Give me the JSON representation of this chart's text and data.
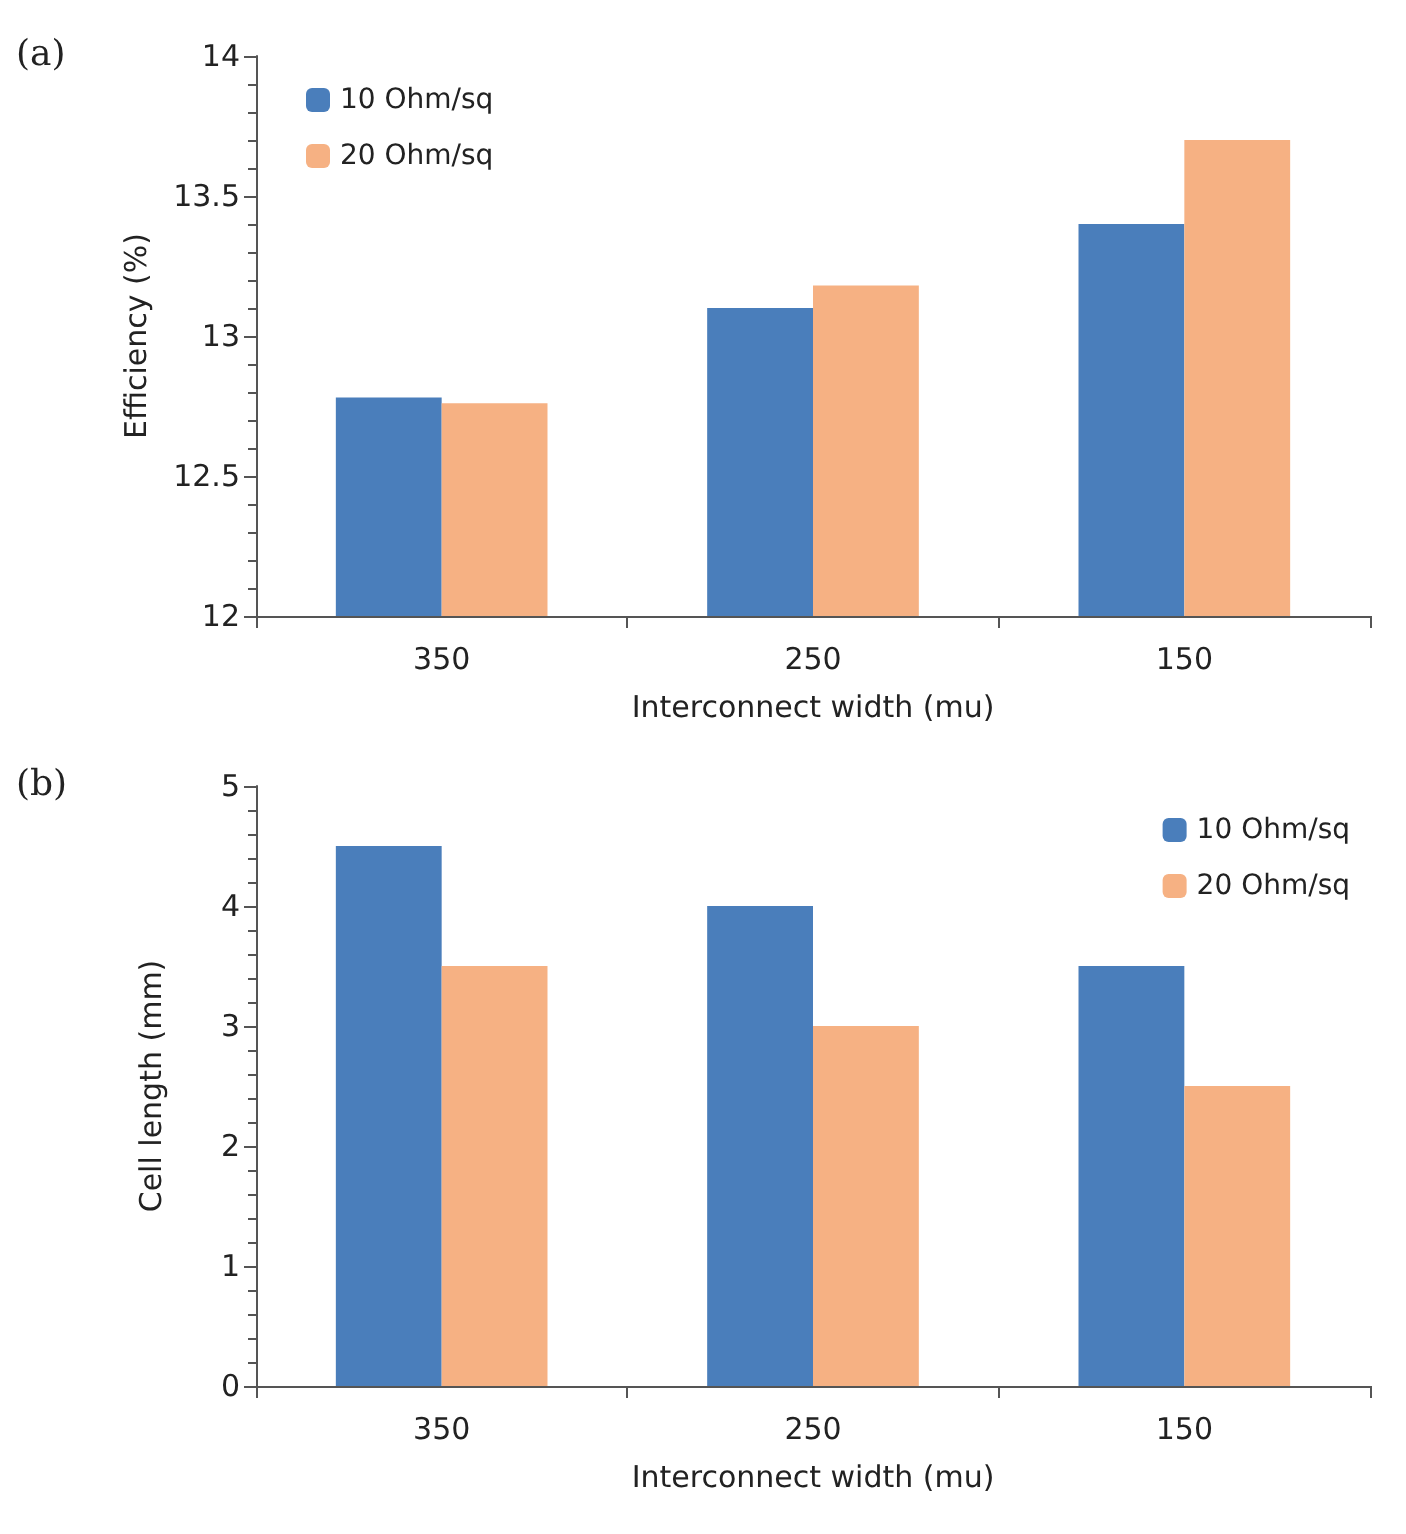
{
  "chart_data": [
    {
      "type": "bar",
      "annotations": [
        "(a)"
      ],
      "xlabel": "Interconnect width (mu)",
      "ylabel": "Efficiency (%)",
      "categories": [
        "350",
        "250",
        "150"
      ],
      "series": [
        {
          "name": "10 Ohm/sq",
          "color": "#4a7ebb",
          "values": [
            12.78,
            13.1,
            13.4
          ]
        },
        {
          "name": "20 Ohm/sq",
          "color": "#f6b183",
          "values": [
            12.76,
            13.18,
            13.7
          ]
        }
      ],
      "ylim": [
        12,
        14
      ],
      "yticks": [
        12,
        12.5,
        13,
        13.5,
        14
      ],
      "grid": false,
      "legend": "top left"
    },
    {
      "type": "bar",
      "annotations": [
        "(b)"
      ],
      "xlabel": "Interconnect width (mu)",
      "ylabel": "Cell length (mm)",
      "categories": [
        "350",
        "250",
        "150"
      ],
      "series": [
        {
          "name": "10 Ohm/sq",
          "color": "#4a7ebb",
          "values": [
            4.5,
            4,
            3.5
          ]
        },
        {
          "name": "20 Ohm/sq",
          "color": "#f6b183",
          "values": [
            3.5,
            3,
            2.5
          ]
        }
      ],
      "ylim": [
        0,
        5
      ],
      "yticks": [
        0,
        1,
        2,
        3,
        4,
        5
      ],
      "grid": false,
      "legend": "top right"
    }
  ]
}
